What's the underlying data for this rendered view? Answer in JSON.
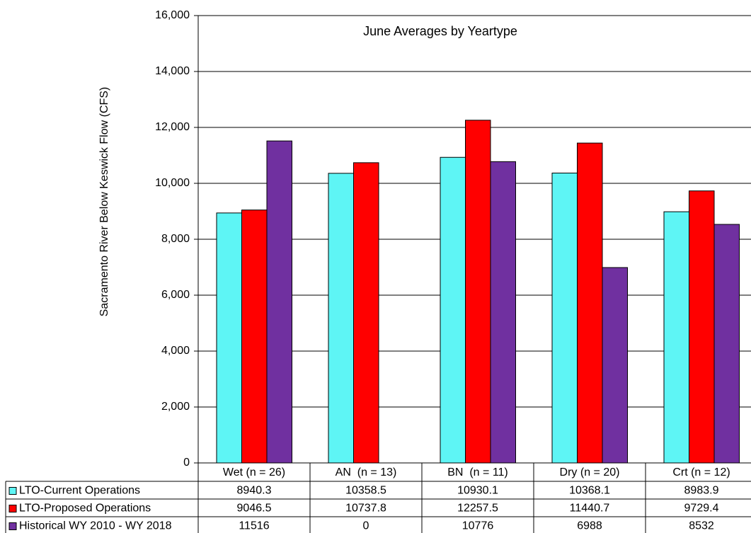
{
  "chart_data": {
    "type": "bar",
    "title": "June Averages by Yeartype",
    "y_label": "Sacramento River Below Keswick Flow (CFS)",
    "categories": [
      "Wet (n = 26)",
      "AN  (n = 13)",
      "BN  (n = 11)",
      "Dry (n = 20)",
      "Crt (n = 12)"
    ],
    "series": [
      {
        "name": "LTO-Current Operations",
        "color": "#5ef5f5",
        "values": [
          8940.3,
          10358.5,
          10930.1,
          10368.1,
          8983.9
        ]
      },
      {
        "name": "LTO-Proposed Operations",
        "color": "#ff0000",
        "values": [
          9046.5,
          10737.8,
          12257.5,
          11440.7,
          9729.4
        ]
      },
      {
        "name": "Historical WY 2010 - WY 2018",
        "color": "#7030a0",
        "values": [
          11516,
          0,
          10776,
          6988,
          8532
        ]
      }
    ],
    "ylim": [
      0,
      16000
    ],
    "yticks": [
      0,
      {
        "value": 2000,
        "label": "2,000"
      },
      {
        "value": 4000,
        "label": "4,000"
      },
      {
        "value": 6000,
        "label": "6,000"
      },
      {
        "value": 8000,
        "label": "8,000"
      },
      {
        "value": 10000,
        "label": "10,000"
      },
      {
        "value": 12000,
        "label": "12,000"
      },
      {
        "value": 14000,
        "label": "14,000"
      },
      {
        "value": 16000,
        "label": "16,000"
      }
    ],
    "grid": true,
    "data_table": true
  }
}
